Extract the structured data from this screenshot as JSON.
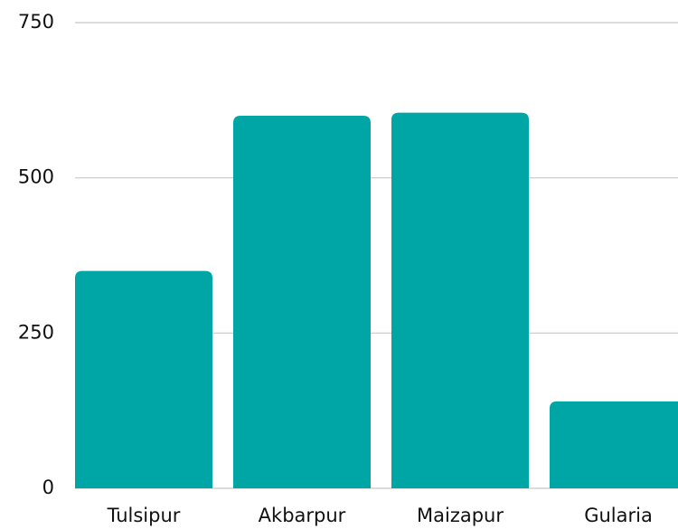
{
  "chart_data": {
    "type": "bar",
    "categories": [
      "Tulsipur",
      "Akbarpur",
      "Maizapur",
      "Gularia"
    ],
    "values": [
      350,
      600,
      605,
      140
    ],
    "color": "#00a5a5",
    "ylim": [
      0,
      750
    ],
    "yticks": [
      0,
      250,
      500,
      750
    ],
    "grid": true
  }
}
